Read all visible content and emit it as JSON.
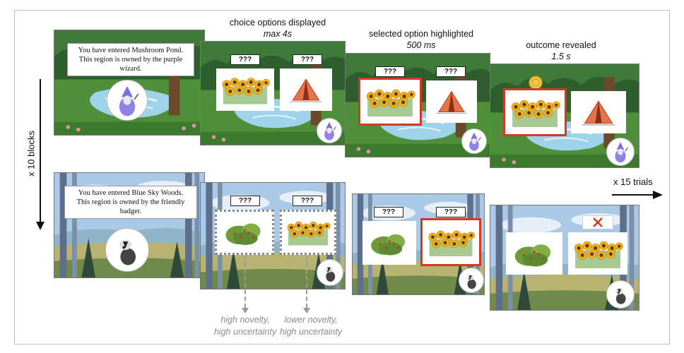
{
  "stages": {
    "choice": {
      "title": "choice options displayed",
      "time": "max 4s"
    },
    "selected": {
      "title": "selected option highlighted",
      "time": "500 ms"
    },
    "outcome": {
      "title": "outcome revealed",
      "time": "1.5 s"
    }
  },
  "blocks_label": "x 10 blocks",
  "trials_label": "x 15 trials",
  "row1": {
    "message_line1": "You have entered Mushroom Pond.",
    "message_line2": "This region is owned by the purple wizard."
  },
  "row2": {
    "message_line1": "You have entered Blue Sky Woods.",
    "message_line2": "This region is owned by the friendly badger."
  },
  "unknown_label": "???",
  "notes": {
    "left_line1": "high novelty,",
    "left_line2": "high uncertainty",
    "right_line1": "lower novelty,",
    "right_line2": "high uncertainty"
  },
  "icons": [
    "wizard-icon",
    "badger-icon",
    "sunflower-field-icon",
    "tent-icon",
    "berry-bush-icon",
    "gold-coin-icon",
    "red-x-icon"
  ]
}
